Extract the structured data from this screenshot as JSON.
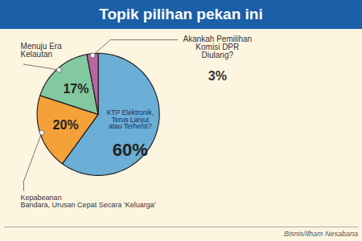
{
  "chart_data": {
    "type": "pie",
    "title": "Topik pilihan pekan ini",
    "categories": [
      "KTP Elektronik,\nTerus Lanjut\natau Terhenti?",
      "Kepabeanan\nBandara, Urusan Cepat Secara ‘Keluarga’",
      "Menuju Era\nKelautan",
      "Akankah Pemilihan\nKomisi DPR\nDiulang?"
    ],
    "values": [
      60,
      20,
      17,
      3
    ],
    "value_labels": [
      "60%",
      "20%",
      "17%",
      "3%"
    ],
    "colors": [
      "#6baed6",
      "#f4a13a",
      "#82c9a0",
      "#b866a0"
    ],
    "data_labels": true,
    "annotations": [
      "Bisnis/Ilham Nesabana"
    ]
  }
}
